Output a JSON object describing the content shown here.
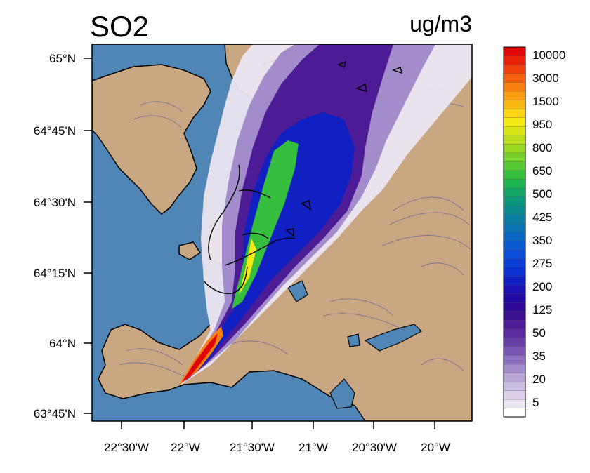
{
  "title": "SO2",
  "units": "ug/m3",
  "map": {
    "lat_labels": [
      "65°N",
      "64°45'N",
      "64°30'N",
      "64°15'N",
      "64°N",
      "63°45'N"
    ],
    "lon_labels": [
      "22°30'W",
      "22°W",
      "21°30'W",
      "21°W",
      "20°30'W",
      "20°W"
    ],
    "colors": {
      "sea": "#4f86b5",
      "land": "#c9a782",
      "contour": "#5a5a96",
      "coast": "#000000"
    }
  },
  "colorbar": {
    "labels": [
      "10000",
      "3000",
      "1500",
      "950",
      "800",
      "650",
      "500",
      "425",
      "350",
      "275",
      "200",
      "125",
      "50",
      "35",
      "20",
      "5"
    ],
    "colors": [
      "#ffffff",
      "#ece6f2",
      "#ddd2ea",
      "#cbbde1",
      "#b8a6d6",
      "#a38ccb",
      "#8e70bf",
      "#7a56b4",
      "#6a3ea9",
      "#5a2b9e",
      "#4c1c96",
      "#3c1090",
      "#2e0a96",
      "#220aa2",
      "#1a12b2",
      "#1020c2",
      "#0a30d0",
      "#0a3ed6",
      "#0a4cd8",
      "#0a5ad0",
      "#0a68c4",
      "#0a74b4",
      "#0a80a2",
      "#0a8c8e",
      "#0a987a",
      "#14a666",
      "#1eb452",
      "#36be3e",
      "#56c832",
      "#78d02a",
      "#9ad822",
      "#bcde1c",
      "#dce41a",
      "#f6ea16",
      "#fcd414",
      "#fcb812",
      "#fc9c10",
      "#f8800e",
      "#f4600c",
      "#ee400a",
      "#e82008",
      "#e00606"
    ]
  }
}
